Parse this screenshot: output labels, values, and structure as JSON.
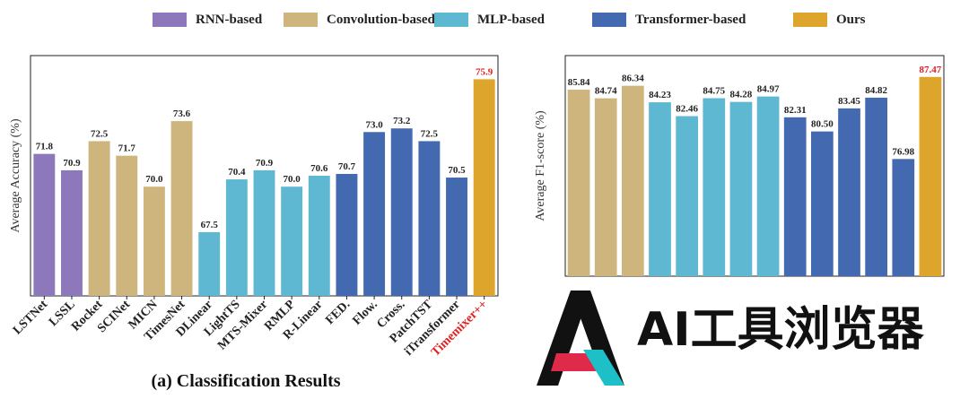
{
  "legend": [
    {
      "name": "RNN-based",
      "color": "#8E78BC"
    },
    {
      "name": "Convolution-based",
      "color": "#CDB57D"
    },
    {
      "name": "MLP-based",
      "color": "#5EB8D2"
    },
    {
      "name": "Transformer-based",
      "color": "#4369B1"
    },
    {
      "name": "Ours",
      "color": "#DEA52C"
    }
  ],
  "highlight_color": "#E02020",
  "watermark": {
    "text": "AI工具浏览器",
    "icon": "ai-letter-a-logo"
  },
  "chart_data": [
    {
      "type": "bar",
      "title": "(a) Classification Results",
      "ylabel": "Average Accuracy (%)",
      "xlabel": "",
      "ylim": [
        64,
        77.2
      ],
      "grid": false,
      "legend_position": "top",
      "categories": [
        "LSTNet",
        "LSSL",
        "Rocket",
        "SCINet",
        "MICN",
        "TimesNet",
        "DLinear",
        "LightTS",
        "MTS-Mixer",
        "RMLP",
        "R-Linear",
        "FED.",
        "Flow.",
        "Cross.",
        "PatchTST",
        "iTransformer",
        "Timemixer++"
      ],
      "values": [
        71.8,
        70.9,
        72.5,
        71.7,
        70.0,
        73.6,
        67.5,
        70.4,
        70.9,
        70.0,
        70.6,
        70.7,
        73.0,
        73.2,
        72.5,
        70.5,
        75.9
      ],
      "labels": [
        "71.8",
        "70.9",
        "72.5",
        "71.7",
        "70.0",
        "73.6",
        "67.5",
        "70.4",
        "70.9",
        "70.0",
        "70.6",
        "70.7",
        "73.0",
        "73.2",
        "72.5",
        "70.5",
        "75.9"
      ],
      "groups": [
        "RNN-based",
        "RNN-based",
        "Convolution-based",
        "Convolution-based",
        "Convolution-based",
        "Convolution-based",
        "MLP-based",
        "MLP-based",
        "MLP-based",
        "MLP-based",
        "MLP-based",
        "Transformer-based",
        "Transformer-based",
        "Transformer-based",
        "Transformer-based",
        "Transformer-based",
        "Ours"
      ],
      "highlight_index": 16
    },
    {
      "type": "bar",
      "title": "",
      "ylabel": "Average F1-score (%)",
      "xlabel": "",
      "ylim": [
        62,
        90.2
      ],
      "grid": false,
      "legend_position": "top",
      "categories": [],
      "values": [
        85.84,
        84.74,
        86.34,
        84.23,
        82.46,
        84.75,
        84.28,
        84.97,
        82.31,
        80.5,
        83.45,
        84.82,
        76.98,
        87.47
      ],
      "labels": [
        "85.84",
        "84.74",
        "86.34",
        "84.23",
        "82.46",
        "84.75",
        "84.28",
        "84.97",
        "82.31",
        "80.50",
        "83.45",
        "84.82",
        "76.98",
        "87.47"
      ],
      "groups": [
        "Convolution-based",
        "Convolution-based",
        "Convolution-based",
        "MLP-based",
        "MLP-based",
        "MLP-based",
        "MLP-based",
        "MLP-based",
        "Transformer-based",
        "Transformer-based",
        "Transformer-based",
        "Transformer-based",
        "Transformer-based",
        "Ours"
      ],
      "highlight_index": 13
    }
  ]
}
